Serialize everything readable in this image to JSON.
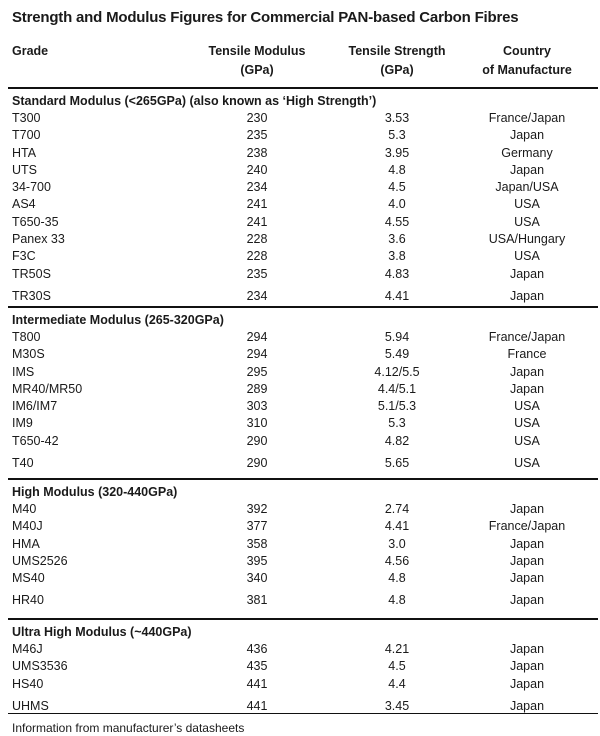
{
  "title": "Strength and Modulus Figures for Commercial PAN-based Carbon Fibres",
  "columns": {
    "grade": "Grade",
    "modulus": [
      "Tensile Modulus",
      "(GPa)"
    ],
    "strength": [
      "Tensile Strength",
      "(GPa)"
    ],
    "country": [
      "Country",
      "of Manufacture"
    ]
  },
  "groups": [
    {
      "heading": "Standard Modulus  (<265GPa) (also known as ‘High Strength’)",
      "rows": [
        [
          "T300",
          "230",
          "3.53",
          "France/Japan"
        ],
        [
          "T700",
          "235",
          "5.3",
          "Japan"
        ],
        [
          "HTA",
          "238",
          "3.95",
          "Germany"
        ],
        [
          "UTS",
          "240",
          "4.8",
          "Japan"
        ],
        [
          "34-700",
          "234",
          "4.5",
          "Japan/USA"
        ],
        [
          "AS4",
          "241",
          "4.0",
          "USA"
        ],
        [
          "T650-35",
          "241",
          "4.55",
          "USA"
        ],
        [
          "Panex 33",
          "228",
          "3.6",
          "USA/Hungary"
        ],
        [
          "F3C",
          "228",
          "3.8",
          "USA"
        ],
        [
          "TR50S",
          "235",
          "4.83",
          "Japan"
        ],
        [
          "TR30S",
          "234",
          "4.41",
          "Japan"
        ]
      ]
    },
    {
      "heading": "Intermediate Modulus  (265-320GPa)",
      "rows": [
        [
          "T800",
          "294",
          "5.94",
          "France/Japan"
        ],
        [
          "M30S",
          "294",
          "5.49",
          "France"
        ],
        [
          "IMS",
          "295",
          "4.12/5.5",
          "Japan"
        ],
        [
          "MR40/MR50",
          "289",
          "4.4/5.1",
          "Japan"
        ],
        [
          "IM6/IM7",
          "303",
          "5.1/5.3",
          "USA"
        ],
        [
          "IM9",
          "310",
          "5.3",
          "USA"
        ],
        [
          "T650-42",
          "290",
          "4.82",
          "USA"
        ],
        [
          "T40",
          "290",
          "5.65",
          "USA"
        ]
      ]
    },
    {
      "heading": "High Modulus  (320-440GPa)",
      "rows": [
        [
          "M40",
          "392",
          "2.74",
          "Japan"
        ],
        [
          "M40J",
          "377",
          "4.41",
          "France/Japan"
        ],
        [
          "HMA",
          "358",
          "3.0",
          "Japan"
        ],
        [
          "UMS2526",
          "395",
          "4.56",
          "Japan"
        ],
        [
          "MS40",
          "340",
          "4.8",
          "Japan"
        ],
        [
          "HR40",
          "381",
          "4.8",
          "Japan"
        ]
      ]
    },
    {
      "heading": "Ultra High Modulus  (~440GPa)",
      "rows": [
        [
          "M46J",
          "436",
          "4.21",
          "Japan"
        ],
        [
          "UMS3536",
          "435",
          "4.5",
          "Japan"
        ],
        [
          "HS40",
          "441",
          "4.4",
          "Japan"
        ],
        [
          "UHMS",
          "441",
          "3.45",
          "Japan"
        ]
      ]
    }
  ],
  "footer": "Information from manufacturer’s datasheets"
}
